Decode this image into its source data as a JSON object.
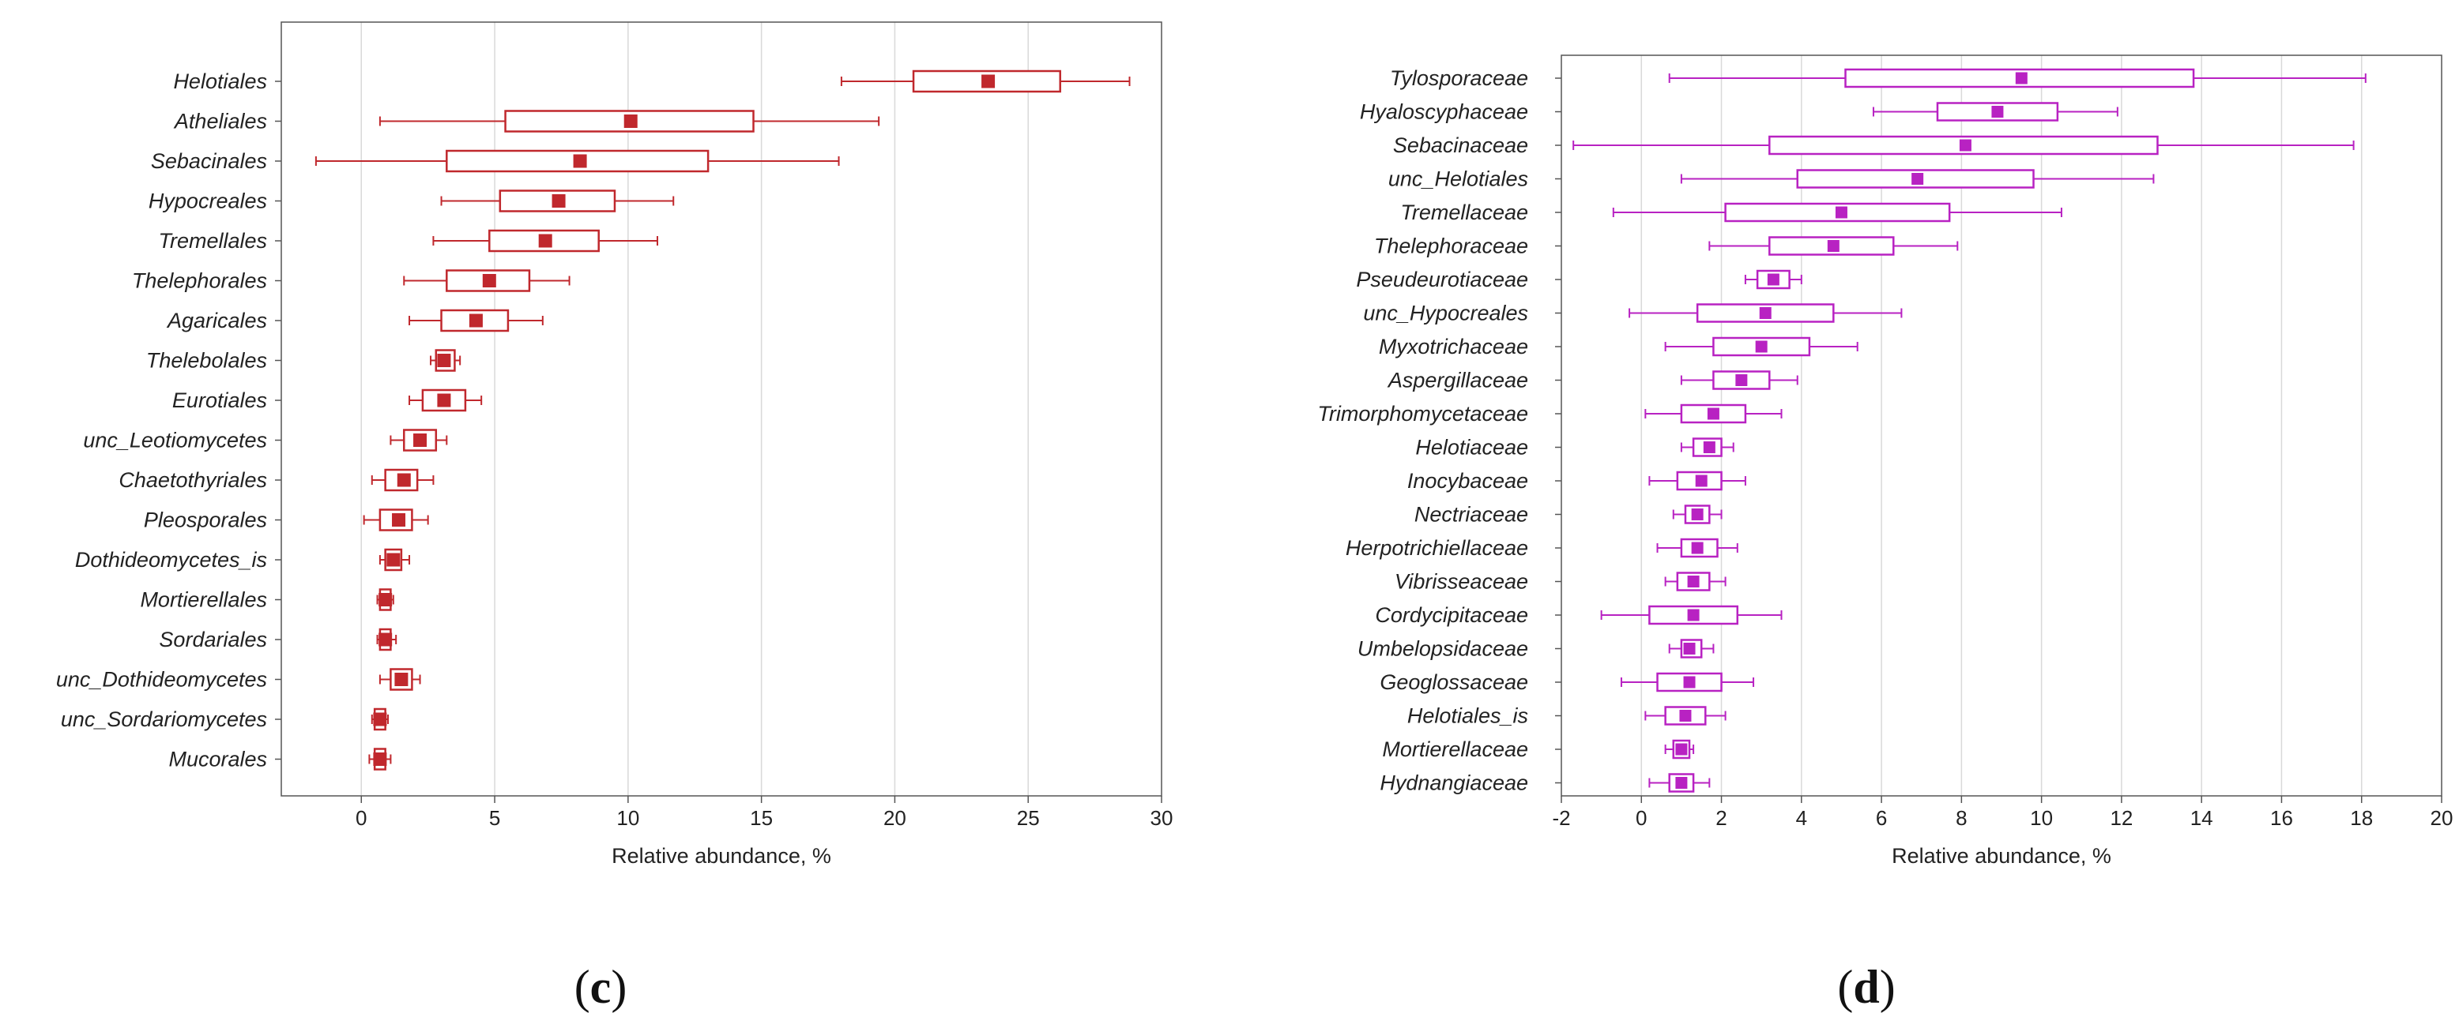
{
  "chart_data": [
    {
      "type": "box",
      "panel_label": "c",
      "color": "#c0282d",
      "xlabel": "Relative abundance, %",
      "xlim": [
        -3,
        30
      ],
      "xticks": [
        0,
        5,
        10,
        15,
        20,
        25,
        30
      ],
      "xtick_labels": [
        "0",
        "5",
        "10",
        "15",
        "20",
        "25",
        "30"
      ],
      "grid": true,
      "categories": [
        "Helotiales",
        "Atheliales",
        "Sebacinales",
        "Hypocreales",
        "Tremellales",
        "Thelephorales",
        "Agaricales",
        "Thelebolales",
        "Eurotiales",
        "unc_Leotiomycetes",
        "Chaetothyriales",
        "Pleosporales",
        "Dothideomycetes_is",
        "Mortierellales",
        "Sordariales",
        "unc_Dothideomycetes",
        "unc_Sordariomycetes",
        "Mucorales"
      ],
      "boxes": [
        {
          "mean": 23.5,
          "q1": 20.7,
          "q3": 26.2,
          "wmin": 18.0,
          "wmax": 28.8
        },
        {
          "mean": 10.1,
          "q1": 5.4,
          "q3": 14.7,
          "wmin": 0.7,
          "wmax": 19.4
        },
        {
          "mean": 8.2,
          "q1": 3.2,
          "q3": 13.0,
          "wmin": -1.7,
          "wmax": 17.9
        },
        {
          "mean": 7.4,
          "q1": 5.2,
          "q3": 9.5,
          "wmin": 3.0,
          "wmax": 11.7
        },
        {
          "mean": 6.9,
          "q1": 4.8,
          "q3": 8.9,
          "wmin": 2.7,
          "wmax": 11.1
        },
        {
          "mean": 4.8,
          "q1": 3.2,
          "q3": 6.3,
          "wmin": 1.6,
          "wmax": 7.8
        },
        {
          "mean": 4.3,
          "q1": 3.0,
          "q3": 5.5,
          "wmin": 1.8,
          "wmax": 6.8
        },
        {
          "mean": 3.1,
          "q1": 2.8,
          "q3": 3.5,
          "wmin": 2.6,
          "wmax": 3.7
        },
        {
          "mean": 3.1,
          "q1": 2.3,
          "q3": 3.9,
          "wmin": 1.8,
          "wmax": 4.5
        },
        {
          "mean": 2.2,
          "q1": 1.6,
          "q3": 2.8,
          "wmin": 1.1,
          "wmax": 3.2
        },
        {
          "mean": 1.6,
          "q1": 0.9,
          "q3": 2.1,
          "wmin": 0.4,
          "wmax": 2.7
        },
        {
          "mean": 1.4,
          "q1": 0.7,
          "q3": 1.9,
          "wmin": 0.1,
          "wmax": 2.5
        },
        {
          "mean": 1.2,
          "q1": 0.9,
          "q3": 1.5,
          "wmin": 0.7,
          "wmax": 1.8
        },
        {
          "mean": 0.9,
          "q1": 0.7,
          "q3": 1.1,
          "wmin": 0.6,
          "wmax": 1.2
        },
        {
          "mean": 0.9,
          "q1": 0.7,
          "q3": 1.1,
          "wmin": 0.6,
          "wmax": 1.3
        },
        {
          "mean": 1.5,
          "q1": 1.1,
          "q3": 1.9,
          "wmin": 0.7,
          "wmax": 2.2
        },
        {
          "mean": 0.7,
          "q1": 0.5,
          "q3": 0.9,
          "wmin": 0.4,
          "wmax": 1.0
        },
        {
          "mean": 0.7,
          "q1": 0.5,
          "q3": 0.9,
          "wmin": 0.3,
          "wmax": 1.1
        }
      ]
    },
    {
      "type": "box",
      "panel_label": "d",
      "color": "#b822c2",
      "xlabel": "Relative abundance, %",
      "xlim": [
        -2,
        20
      ],
      "xticks": [
        -2,
        0,
        2,
        4,
        6,
        8,
        10,
        12,
        14,
        16,
        18,
        20
      ],
      "xtick_labels": [
        "-2",
        "0",
        "2",
        "4",
        "6",
        "8",
        "10",
        "12",
        "14",
        "16",
        "18",
        "20"
      ],
      "grid": true,
      "categories": [
        "Tylosporaceae",
        "Hyaloscyphaceae",
        "Sebacinaceae",
        "unc_Helotiales",
        "Tremellaceae",
        "Thelephoraceae",
        "Pseudeurotiaceae",
        "unc_Hypocreales",
        "Myxotrichaceae",
        "Aspergillaceae",
        "Trimorphomycetaceae",
        "Helotiaceae",
        "Inocybaceae",
        "Nectriaceae",
        "Herpotrichiellaceae",
        "Vibrisseaceae",
        "Cordycipitaceae",
        "Umbelopsidaceae",
        "Geoglossaceae",
        "Helotiales_is",
        "Mortierellaceae",
        "Hydnangiaceae"
      ],
      "boxes": [
        {
          "mean": 9.5,
          "q1": 5.1,
          "q3": 13.8,
          "wmin": 0.7,
          "wmax": 18.1
        },
        {
          "mean": 8.9,
          "q1": 7.4,
          "q3": 10.4,
          "wmin": 5.8,
          "wmax": 11.9
        },
        {
          "mean": 8.1,
          "q1": 3.2,
          "q3": 12.9,
          "wmin": -1.7,
          "wmax": 17.8
        },
        {
          "mean": 6.9,
          "q1": 3.9,
          "q3": 9.8,
          "wmin": 1.0,
          "wmax": 12.8
        },
        {
          "mean": 5.0,
          "q1": 2.1,
          "q3": 7.7,
          "wmin": -0.7,
          "wmax": 10.5
        },
        {
          "mean": 4.8,
          "q1": 3.2,
          "q3": 6.3,
          "wmin": 1.7,
          "wmax": 7.9
        },
        {
          "mean": 3.3,
          "q1": 2.9,
          "q3": 3.7,
          "wmin": 2.6,
          "wmax": 4.0
        },
        {
          "mean": 3.1,
          "q1": 1.4,
          "q3": 4.8,
          "wmin": -0.3,
          "wmax": 6.5
        },
        {
          "mean": 3.0,
          "q1": 1.8,
          "q3": 4.2,
          "wmin": 0.6,
          "wmax": 5.4
        },
        {
          "mean": 2.5,
          "q1": 1.8,
          "q3": 3.2,
          "wmin": 1.0,
          "wmax": 3.9
        },
        {
          "mean": 1.8,
          "q1": 1.0,
          "q3": 2.6,
          "wmin": 0.1,
          "wmax": 3.5
        },
        {
          "mean": 1.7,
          "q1": 1.3,
          "q3": 2.0,
          "wmin": 1.0,
          "wmax": 2.3
        },
        {
          "mean": 1.5,
          "q1": 0.9,
          "q3": 2.0,
          "wmin": 0.2,
          "wmax": 2.6
        },
        {
          "mean": 1.4,
          "q1": 1.1,
          "q3": 1.7,
          "wmin": 0.8,
          "wmax": 2.0
        },
        {
          "mean": 1.4,
          "q1": 1.0,
          "q3": 1.9,
          "wmin": 0.4,
          "wmax": 2.4
        },
        {
          "mean": 1.3,
          "q1": 0.9,
          "q3": 1.7,
          "wmin": 0.6,
          "wmax": 2.1
        },
        {
          "mean": 1.3,
          "q1": 0.2,
          "q3": 2.4,
          "wmin": -1.0,
          "wmax": 3.5
        },
        {
          "mean": 1.2,
          "q1": 1.0,
          "q3": 1.5,
          "wmin": 0.7,
          "wmax": 1.8
        },
        {
          "mean": 1.2,
          "q1": 0.4,
          "q3": 2.0,
          "wmin": -0.5,
          "wmax": 2.8
        },
        {
          "mean": 1.1,
          "q1": 0.6,
          "q3": 1.6,
          "wmin": 0.1,
          "wmax": 2.1
        },
        {
          "mean": 1.0,
          "q1": 0.8,
          "q3": 1.2,
          "wmin": 0.6,
          "wmax": 1.3
        },
        {
          "mean": 1.0,
          "q1": 0.7,
          "q3": 1.3,
          "wmin": 0.2,
          "wmax": 1.7
        }
      ]
    }
  ]
}
